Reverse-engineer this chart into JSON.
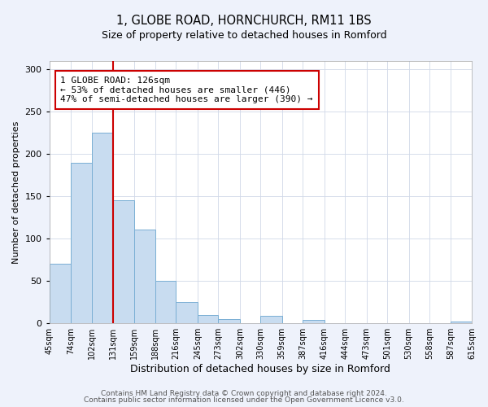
{
  "title": "1, GLOBE ROAD, HORNCHURCH, RM11 1BS",
  "subtitle": "Size of property relative to detached houses in Romford",
  "xlabel": "Distribution of detached houses by size in Romford",
  "ylabel": "Number of detached properties",
  "bar_edges": [
    45,
    74,
    102,
    131,
    159,
    188,
    216,
    245,
    273,
    302,
    330,
    359,
    387,
    416,
    444,
    473,
    501,
    530,
    558,
    587,
    615
  ],
  "bar_heights": [
    70,
    190,
    225,
    145,
    111,
    50,
    25,
    10,
    5,
    0,
    9,
    0,
    4,
    0,
    0,
    0,
    0,
    0,
    0,
    2
  ],
  "bar_color": "#c8dcf0",
  "bar_edgecolor": "#7aafd4",
  "vline_x": 131,
  "vline_color": "#cc0000",
  "annotation_text": "1 GLOBE ROAD: 126sqm\n← 53% of detached houses are smaller (446)\n47% of semi-detached houses are larger (390) →",
  "annotation_box_edgecolor": "#cc0000",
  "ylim": [
    0,
    310
  ],
  "yticks": [
    0,
    50,
    100,
    150,
    200,
    250,
    300
  ],
  "tick_labels": [
    "45sqm",
    "74sqm",
    "102sqm",
    "131sqm",
    "159sqm",
    "188sqm",
    "216sqm",
    "245sqm",
    "273sqm",
    "302sqm",
    "330sqm",
    "359sqm",
    "387sqm",
    "416sqm",
    "444sqm",
    "473sqm",
    "501sqm",
    "530sqm",
    "558sqm",
    "587sqm",
    "615sqm"
  ],
  "footer1": "Contains HM Land Registry data © Crown copyright and database right 2024.",
  "footer2": "Contains public sector information licensed under the Open Government Licence v3.0.",
  "bg_color": "#eef2fb",
  "plot_bg_color": "#ffffff",
  "title_fontsize": 10.5,
  "subtitle_fontsize": 9,
  "annotation_fontsize": 8,
  "ylabel_fontsize": 8,
  "xlabel_fontsize": 9,
  "ytick_fontsize": 8,
  "xtick_fontsize": 7
}
